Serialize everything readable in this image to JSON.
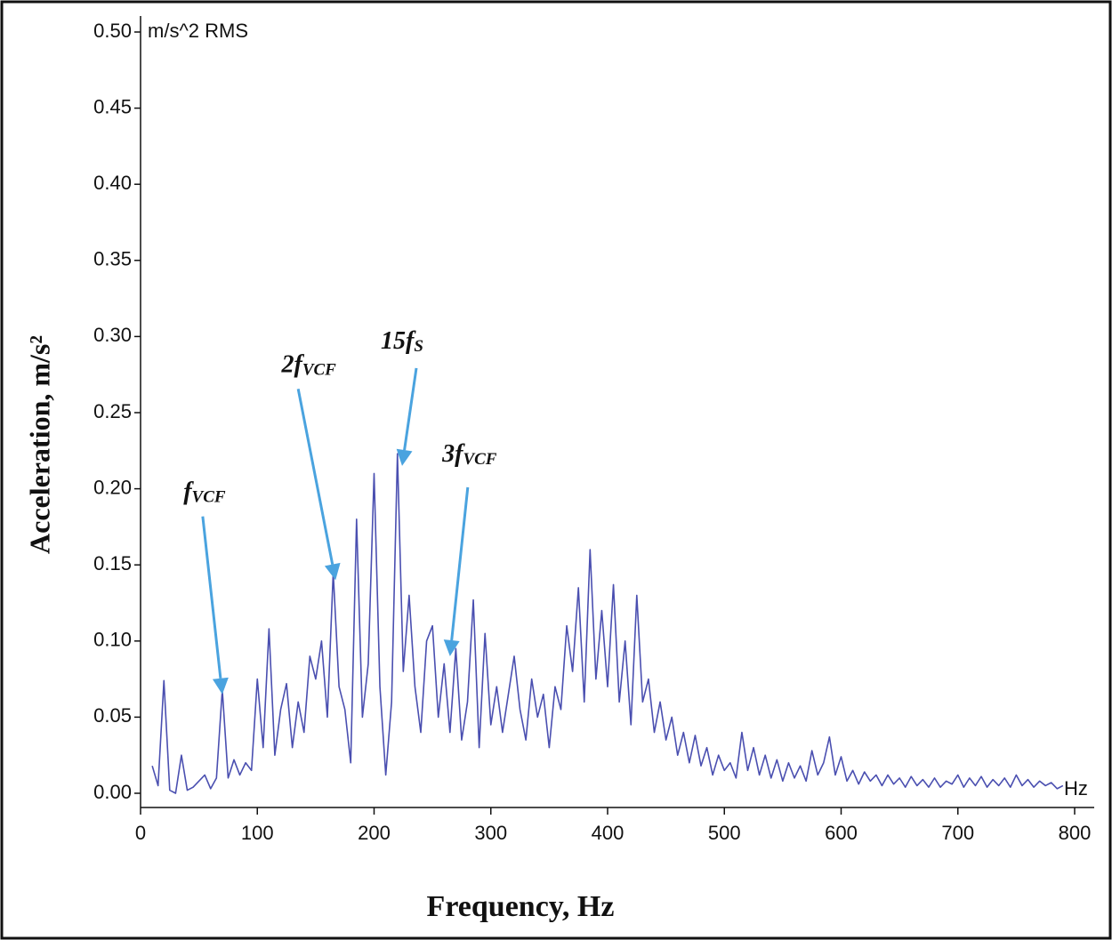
{
  "chart_data": {
    "type": "line",
    "y_unit": "m/s^2 RMS",
    "x_unit": "Hz",
    "y_label": "Acceleration, m/s²",
    "x_label": "Frequency, Hz",
    "xlim": [
      0,
      800
    ],
    "xticks": [
      0,
      100,
      200,
      300,
      400,
      500,
      600,
      700,
      800
    ],
    "ylim": [
      0,
      0.5
    ],
    "yticks": [
      {
        "value": 0,
        "label": "0.00"
      },
      0.05,
      {
        "value": 0.1,
        "label": "0.10"
      },
      0.15,
      {
        "value": 0.2,
        "label": "0.20"
      },
      0.25,
      {
        "value": 0.3,
        "label": "0.30"
      },
      0.35,
      {
        "value": 0.4,
        "label": "0.40"
      },
      0.45,
      {
        "value": 0.5,
        "label": "0.50"
      }
    ],
    "annotation_color": "#4aa3df",
    "annotations": [
      {
        "text": "f",
        "sub": "VCF",
        "x": 70,
        "y": 0.065
      },
      {
        "text": "2f",
        "sub": "VCF",
        "x": 167,
        "y": 0.14
      },
      {
        "text": "15f",
        "sub": "S",
        "x": 224,
        "y": 0.215
      },
      {
        "text": "3f",
        "sub": "VCF",
        "x": 265,
        "y": 0.09
      }
    ],
    "series": [
      {
        "color": "#4a4fb0",
        "x": [
          10,
          15,
          20,
          25,
          30,
          35,
          40,
          45,
          50,
          55,
          60,
          65,
          70,
          75,
          80,
          85,
          90,
          95,
          100,
          105,
          110,
          115,
          120,
          125,
          130,
          135,
          140,
          145,
          150,
          155,
          160,
          165,
          170,
          175,
          180,
          185,
          190,
          195,
          200,
          205,
          210,
          215,
          220,
          225,
          230,
          235,
          240,
          245,
          250,
          255,
          260,
          265,
          270,
          275,
          280,
          285,
          290,
          295,
          300,
          305,
          310,
          315,
          320,
          325,
          330,
          335,
          340,
          345,
          350,
          355,
          360,
          365,
          370,
          375,
          380,
          385,
          390,
          395,
          400,
          405,
          410,
          415,
          420,
          425,
          430,
          435,
          440,
          445,
          450,
          455,
          460,
          465,
          470,
          475,
          480,
          485,
          490,
          495,
          500,
          505,
          510,
          515,
          520,
          525,
          530,
          535,
          540,
          545,
          550,
          555,
          560,
          565,
          570,
          575,
          580,
          585,
          590,
          595,
          600,
          605,
          610,
          615,
          620,
          625,
          630,
          635,
          640,
          645,
          650,
          655,
          660,
          665,
          670,
          675,
          680,
          685,
          690,
          695,
          700,
          705,
          710,
          715,
          720,
          725,
          730,
          735,
          740,
          745,
          750,
          755,
          760,
          765,
          770,
          775,
          780,
          785,
          790
        ],
        "values": [
          0.018,
          0.005,
          0.074,
          0.002,
          0.0,
          0.025,
          0.002,
          0.004,
          0.008,
          0.012,
          0.003,
          0.01,
          0.068,
          0.01,
          0.022,
          0.012,
          0.02,
          0.015,
          0.075,
          0.03,
          0.108,
          0.025,
          0.055,
          0.072,
          0.03,
          0.06,
          0.04,
          0.09,
          0.075,
          0.1,
          0.05,
          0.145,
          0.07,
          0.055,
          0.02,
          0.18,
          0.05,
          0.085,
          0.21,
          0.07,
          0.012,
          0.06,
          0.223,
          0.08,
          0.13,
          0.07,
          0.04,
          0.1,
          0.11,
          0.05,
          0.085,
          0.04,
          0.095,
          0.035,
          0.06,
          0.127,
          0.03,
          0.105,
          0.045,
          0.07,
          0.04,
          0.065,
          0.09,
          0.055,
          0.035,
          0.075,
          0.05,
          0.065,
          0.03,
          0.07,
          0.055,
          0.11,
          0.08,
          0.135,
          0.06,
          0.16,
          0.075,
          0.12,
          0.07,
          0.137,
          0.06,
          0.1,
          0.045,
          0.13,
          0.06,
          0.075,
          0.04,
          0.06,
          0.035,
          0.05,
          0.025,
          0.04,
          0.02,
          0.038,
          0.018,
          0.03,
          0.012,
          0.025,
          0.015,
          0.02,
          0.01,
          0.04,
          0.015,
          0.03,
          0.012,
          0.025,
          0.01,
          0.022,
          0.008,
          0.02,
          0.01,
          0.018,
          0.008,
          0.028,
          0.012,
          0.02,
          0.037,
          0.012,
          0.024,
          0.008,
          0.015,
          0.006,
          0.014,
          0.008,
          0.012,
          0.005,
          0.012,
          0.006,
          0.01,
          0.004,
          0.011,
          0.005,
          0.009,
          0.004,
          0.01,
          0.004,
          0.008,
          0.006,
          0.012,
          0.004,
          0.01,
          0.005,
          0.011,
          0.004,
          0.009,
          0.005,
          0.01,
          0.004,
          0.012,
          0.005,
          0.009,
          0.004,
          0.008,
          0.005,
          0.007,
          0.003,
          0.005
        ]
      }
    ]
  }
}
